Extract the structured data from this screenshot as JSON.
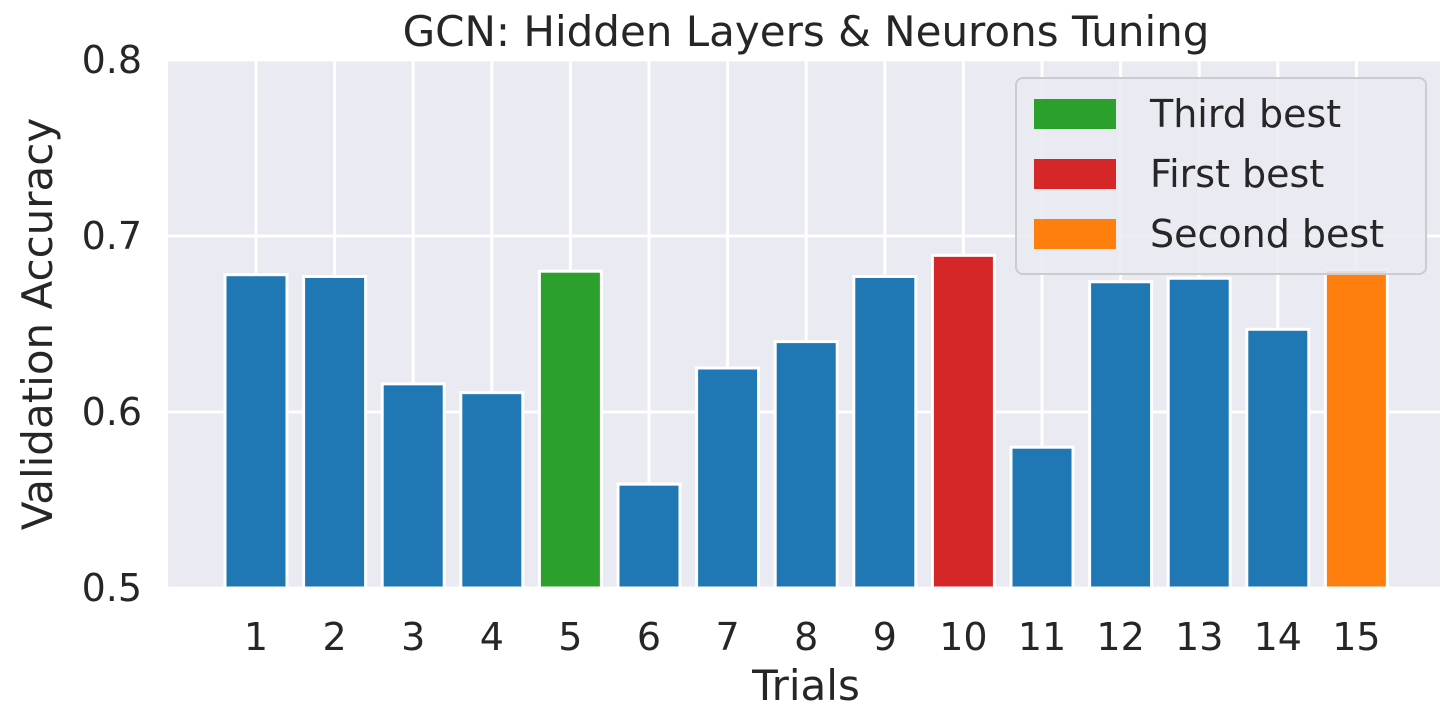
{
  "chart_data": {
    "type": "bar",
    "title": "GCN: Hidden Layers & Neurons Tuning",
    "xlabel": "Trials",
    "ylabel": "Validation Accuracy",
    "ylim": [
      0.5,
      0.8
    ],
    "yticks": [
      "0.5",
      "0.6",
      "0.7",
      "0.8"
    ],
    "categories": [
      "1",
      "2",
      "3",
      "4",
      "5",
      "6",
      "7",
      "8",
      "9",
      "10",
      "11",
      "12",
      "13",
      "14",
      "15"
    ],
    "values": [
      0.678,
      0.677,
      0.616,
      0.611,
      0.68,
      0.559,
      0.625,
      0.64,
      0.677,
      0.689,
      0.58,
      0.674,
      0.676,
      0.647,
      0.681
    ],
    "bar_colors": [
      "#1f77b4",
      "#1f77b4",
      "#1f77b4",
      "#1f77b4",
      "#2ca02c",
      "#1f77b4",
      "#1f77b4",
      "#1f77b4",
      "#1f77b4",
      "#d62728",
      "#1f77b4",
      "#1f77b4",
      "#1f77b4",
      "#1f77b4",
      "#ff7f0e"
    ],
    "grid": true,
    "background": "#eaeaf2",
    "legend": {
      "position": "top-right",
      "entries": [
        {
          "label": "Third best",
          "color": "#2ca02c"
        },
        {
          "label": "First best",
          "color": "#d62728"
        },
        {
          "label": "Second best",
          "color": "#ff7f0e"
        }
      ]
    }
  }
}
